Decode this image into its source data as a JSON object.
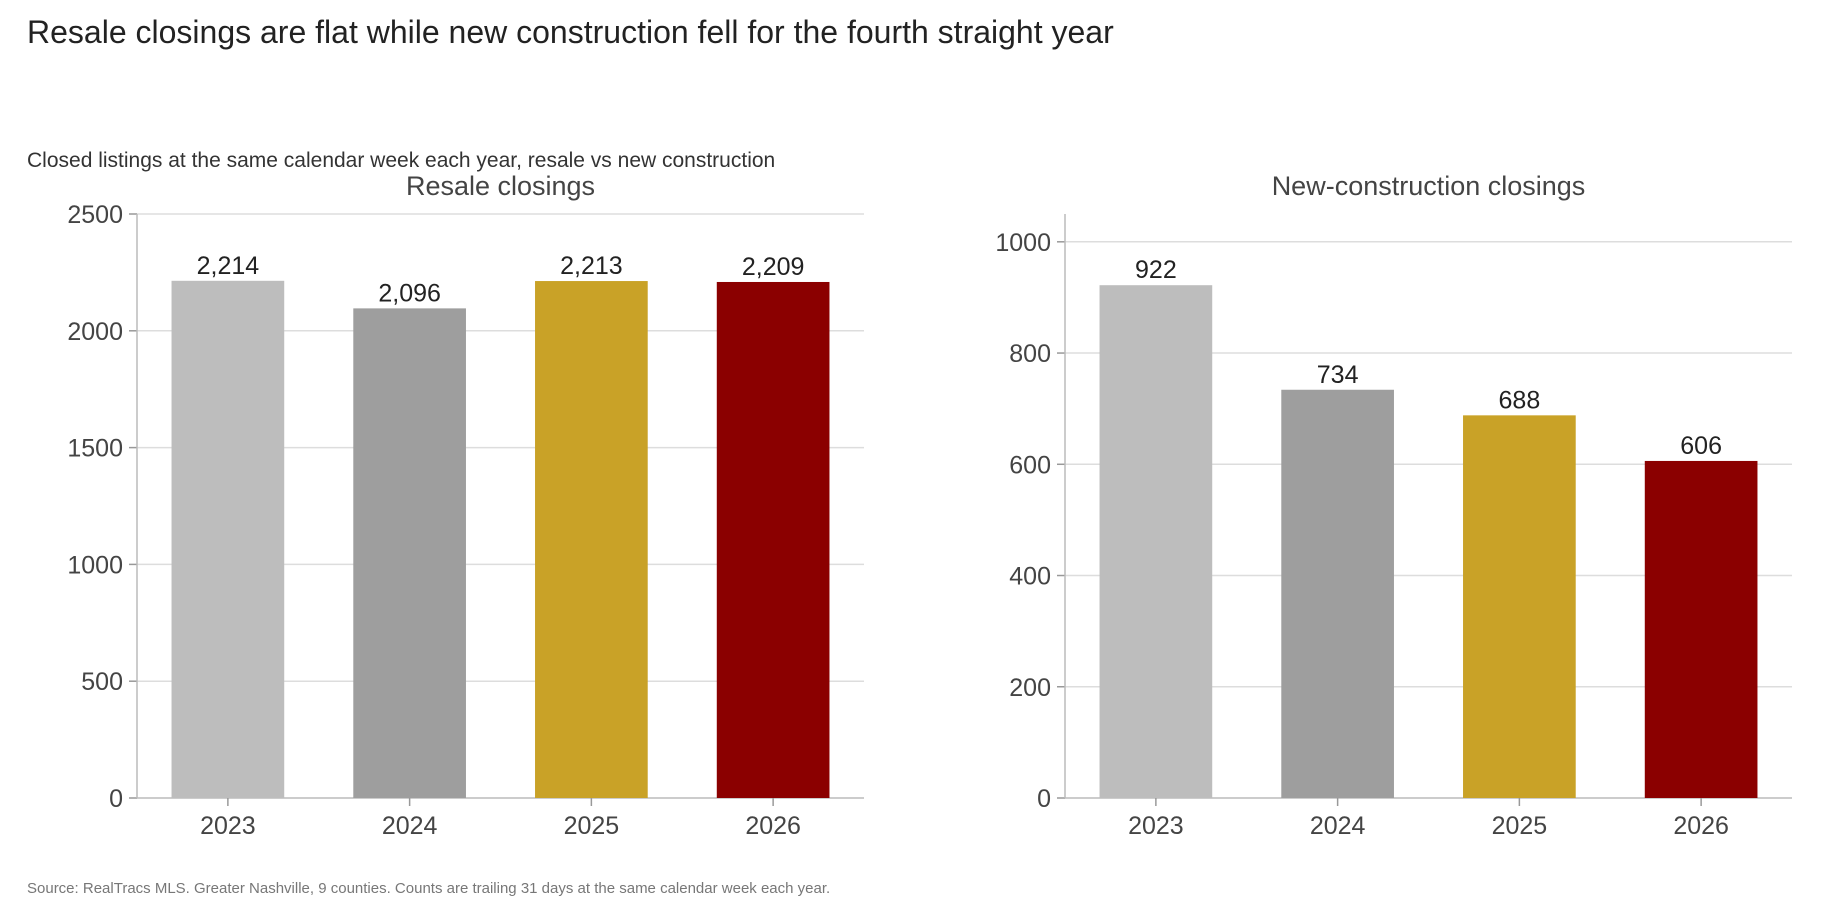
{
  "title": "Resale closings are flat while new construction fell for the fourth straight year",
  "subtitle": "Closed listings at the same calendar week each year, resale vs new construction",
  "source": "Source: RealTracs MLS. Greater Nashville, 9 counties. Counts are trailing 31 days at the same calendar week each year.",
  "colors": [
    "#bdbdbd",
    "#9e9e9e",
    "#c9a227",
    "#8b0000"
  ],
  "chart_data": [
    {
      "type": "bar",
      "title": "Resale closings",
      "categories": [
        "2023",
        "2024",
        "2025",
        "2026"
      ],
      "values": [
        2214,
        2096,
        2213,
        2209
      ],
      "value_labels": [
        "2,214",
        "2,096",
        "2,213",
        "2,209"
      ],
      "ylim": [
        0,
        2500
      ],
      "yticks": [
        0,
        500,
        1000,
        1500,
        2000,
        2500
      ],
      "grid": true
    },
    {
      "type": "bar",
      "title": "New-construction closings",
      "categories": [
        "2023",
        "2024",
        "2025",
        "2026"
      ],
      "values": [
        922,
        734,
        688,
        606
      ],
      "value_labels": [
        "922",
        "734",
        "688",
        "606"
      ],
      "ylim": [
        0,
        1050
      ],
      "yticks": [
        0,
        200,
        400,
        600,
        800,
        1000
      ],
      "grid": true
    }
  ]
}
